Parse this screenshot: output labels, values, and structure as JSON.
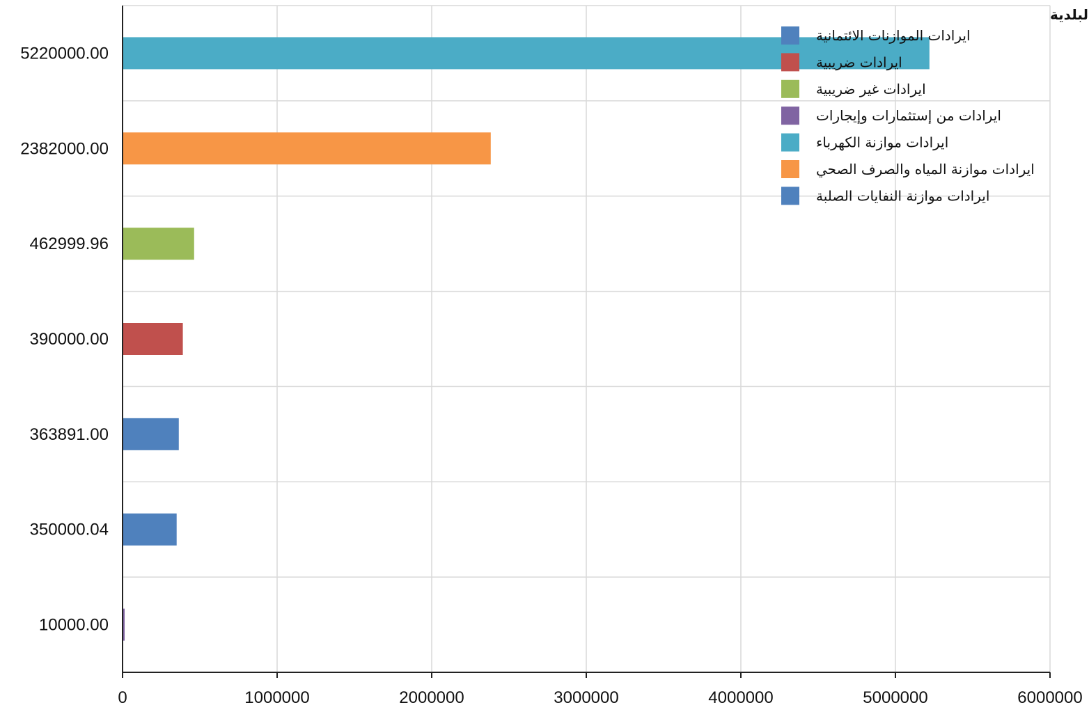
{
  "chart_data": {
    "type": "bar",
    "orientation": "horizontal",
    "legend_title": "ايرادات البلدية",
    "legend_position": "top-right",
    "grid": true,
    "xlim": [
      0,
      6000000
    ],
    "x_ticks": [
      0,
      1000000,
      2000000,
      3000000,
      4000000,
      5000000,
      6000000
    ],
    "x_tick_labels": [
      "0",
      "1000000",
      "2000000",
      "3000000",
      "4000000",
      "5000000",
      "6000000"
    ],
    "categories": [
      "5220000.00",
      "2382000.00",
      "462999.96",
      "390000.00",
      "363891.00",
      "350000.04",
      "10000.00"
    ],
    "values": [
      5220000.0,
      2382000.0,
      462999.96,
      390000.0,
      363891.0,
      350000.04,
      10000.0
    ],
    "bar_colors": [
      "#4bacc6",
      "#f79646",
      "#9bbb59",
      "#c0504d",
      "#4f81bd",
      "#4f81bd",
      "#8064a2"
    ],
    "series": [
      {
        "name": "ايرادات الموازنات الائتمانية",
        "color": "#4f81bd"
      },
      {
        "name": "ايرادات ضريبية",
        "color": "#c0504d"
      },
      {
        "name": "ايرادات غير ضريبية",
        "color": "#9bbb59"
      },
      {
        "name": "ايرادات من إستثمارات وإيجارات",
        "color": "#8064a2"
      },
      {
        "name": "ايرادات موازنة الكهرباء",
        "color": "#4bacc6"
      },
      {
        "name": "ايرادات موازنة المياه والصرف الصحي",
        "color": "#f79646"
      },
      {
        "name": "ايرادات موازنة النفايات الصلبة",
        "color": "#4f81bd"
      }
    ]
  }
}
